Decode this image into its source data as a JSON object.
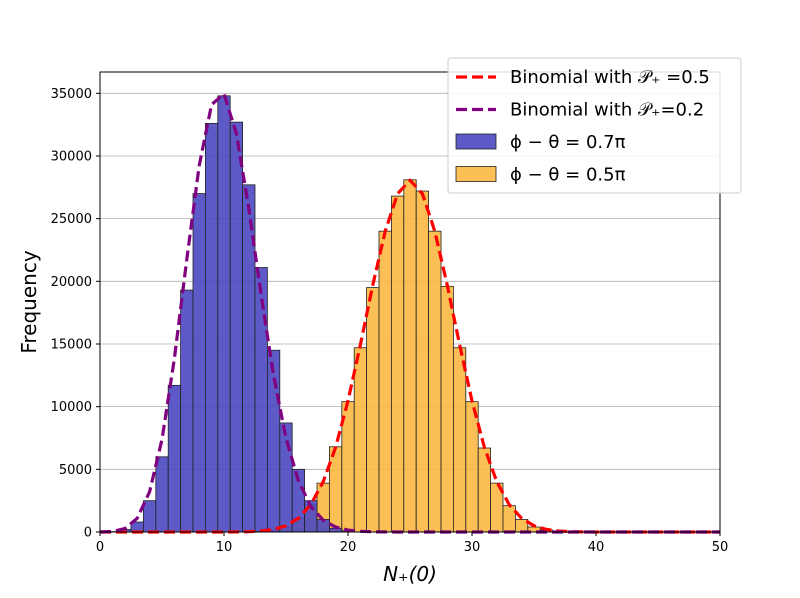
{
  "chart_data": {
    "type": "bar",
    "xlabel": "N₊(0)",
    "ylabel": "Frequency",
    "xlim": [
      0,
      50
    ],
    "ylim": [
      0,
      36700
    ],
    "xticks": [
      0,
      10,
      20,
      30,
      40,
      50
    ],
    "yticks": [
      0,
      5000,
      10000,
      15000,
      20000,
      25000,
      30000,
      35000
    ],
    "grid": "horizontal",
    "legend_position": "top-right",
    "histograms": [
      {
        "name": "ϕ − θ = 0.7π",
        "color": "#4b48c2",
        "bin_width": 1,
        "x": [
          1,
          2,
          3,
          4,
          5,
          6,
          7,
          8,
          9,
          10,
          11,
          12,
          13,
          14,
          15,
          16,
          17,
          18,
          19,
          20
        ],
        "values": [
          30,
          200,
          800,
          2500,
          6000,
          11700,
          19300,
          27000,
          32600,
          34800,
          32700,
          27700,
          21100,
          14500,
          8700,
          5000,
          2500,
          1000,
          300,
          100
        ]
      },
      {
        "name": "ϕ − θ = 0.5π",
        "color": "#fbb843",
        "bin_width": 1,
        "x": [
          13,
          14,
          15,
          16,
          17,
          18,
          19,
          20,
          21,
          22,
          23,
          24,
          25,
          26,
          27,
          28,
          29,
          30,
          31,
          32,
          33,
          34,
          35,
          36,
          37
        ],
        "values": [
          50,
          150,
          400,
          1100,
          2200,
          3900,
          6800,
          10400,
          14700,
          19500,
          24000,
          26800,
          28100,
          27200,
          24000,
          19600,
          14700,
          10400,
          6700,
          3900,
          2100,
          1000,
          400,
          150,
          50
        ]
      }
    ],
    "curves": [
      {
        "name": "Binomial with  𝒫₊ =0.5",
        "color": "#ff0000",
        "n": 50,
        "p": 0.5,
        "total": 250000
      },
      {
        "name": "Binomial with 𝒫₊=0.2",
        "color": "#800080",
        "n": 50,
        "p": 0.2,
        "total": 250000
      }
    ]
  }
}
